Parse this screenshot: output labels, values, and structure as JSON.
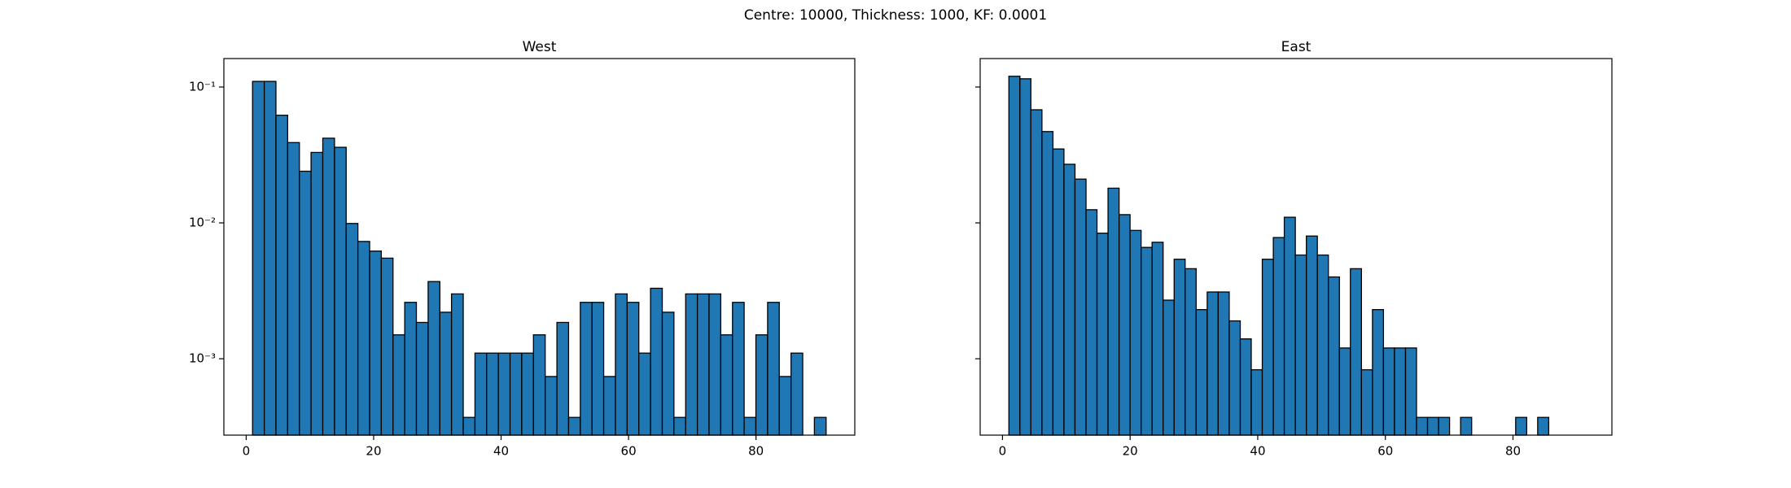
{
  "title": "Centre: 10000, Thickness: 1000, KF: 0.0001",
  "chart_data": [
    {
      "type": "histogram",
      "title": "West",
      "color": "#1f77b4",
      "edgecolor": "#000000",
      "log_y": true,
      "tick_labels": true,
      "bins": [
        1,
        2.84,
        4.67,
        6.51,
        8.35,
        10.18,
        12.02,
        13.86,
        15.69,
        17.53,
        19.37,
        21.2,
        23.04,
        24.88,
        26.71,
        28.55,
        30.39,
        32.22,
        34.06,
        35.9,
        37.73,
        39.57,
        41.41,
        43.24,
        45.08,
        46.92,
        48.76,
        50.59,
        52.43,
        54.27,
        56.1,
        57.94,
        59.78,
        61.61,
        63.45,
        65.29,
        67.12,
        68.96,
        70.8,
        72.63,
        74.47,
        76.31,
        78.14,
        79.98,
        81.82,
        83.65,
        85.49,
        87.33,
        89.16,
        91
      ],
      "values": [
        0.11,
        0.11,
        0.062,
        0.039,
        0.024,
        0.033,
        0.042,
        0.036,
        0.0099,
        0.0073,
        0.0062,
        0.0055,
        0.0015,
        0.0026,
        0.00185,
        0.0037,
        0.0022,
        0.003,
        0.00037,
        0.0011,
        0.0011,
        0.0011,
        0.0011,
        0.0011,
        0.0015,
        0.00074,
        0.00185,
        0.00037,
        0.0026,
        0.0026,
        0.00074,
        0.003,
        0.0026,
        0.0011,
        0.0033,
        0.0022,
        0.00037,
        0.003,
        0.003,
        0.003,
        0.0015,
        0.0026,
        0.00037,
        0.0015,
        0.0026,
        0.00074,
        0.0011,
        0,
        0.00037
      ],
      "xlim": [
        -3.5,
        95.5
      ],
      "xticks": [
        0,
        20,
        40,
        60,
        80
      ],
      "ylim": [
        0.000274,
        0.162
      ],
      "yticks": [
        {
          "value": 0.1,
          "label": "10⁻¹"
        },
        {
          "value": 0.01,
          "label": "10⁻²"
        },
        {
          "value": 0.001,
          "label": "10⁻³"
        }
      ]
    },
    {
      "type": "histogram",
      "title": "East",
      "color": "#1f77b4",
      "edgecolor": "#000000",
      "log_y": true,
      "tick_labels": false,
      "bins": [
        1,
        2.73,
        4.45,
        6.18,
        7.91,
        9.63,
        11.36,
        13.09,
        14.81,
        16.54,
        18.27,
        19.99,
        21.72,
        23.44,
        25.17,
        26.9,
        28.62,
        30.35,
        32.08,
        33.8,
        35.53,
        37.26,
        38.98,
        40.71,
        42.44,
        44.16,
        45.89,
        47.62,
        49.34,
        51.07,
        52.8,
        54.52,
        56.25,
        57.98,
        59.7,
        61.43,
        63.16,
        64.88,
        66.61,
        68.34,
        70.06,
        71.79,
        73.52,
        75.24,
        76.97,
        78.7,
        80.42,
        82.15,
        83.87,
        85.6
      ],
      "values": [
        0.12,
        0.115,
        0.068,
        0.047,
        0.035,
        0.027,
        0.021,
        0.0125,
        0.0084,
        0.018,
        0.0115,
        0.0088,
        0.0066,
        0.0072,
        0.0027,
        0.0054,
        0.0046,
        0.0023,
        0.0031,
        0.0031,
        0.0019,
        0.0014,
        0.00083,
        0.0054,
        0.0078,
        0.011,
        0.0058,
        0.008,
        0.0058,
        0.004,
        0.0012,
        0.0046,
        0.00083,
        0.0023,
        0.0012,
        0.0012,
        0.0012,
        0.00037,
        0.00037,
        0.00037,
        0,
        0.00037,
        0,
        0,
        0,
        0,
        0.00037,
        0,
        0.00037
      ],
      "xlim": [
        -3.5,
        95.5
      ],
      "xticks": [
        0,
        20,
        40,
        60,
        80
      ],
      "ylim": [
        0.000274,
        0.162
      ],
      "yticks": [
        0.1,
        0.01,
        0.001
      ]
    }
  ]
}
